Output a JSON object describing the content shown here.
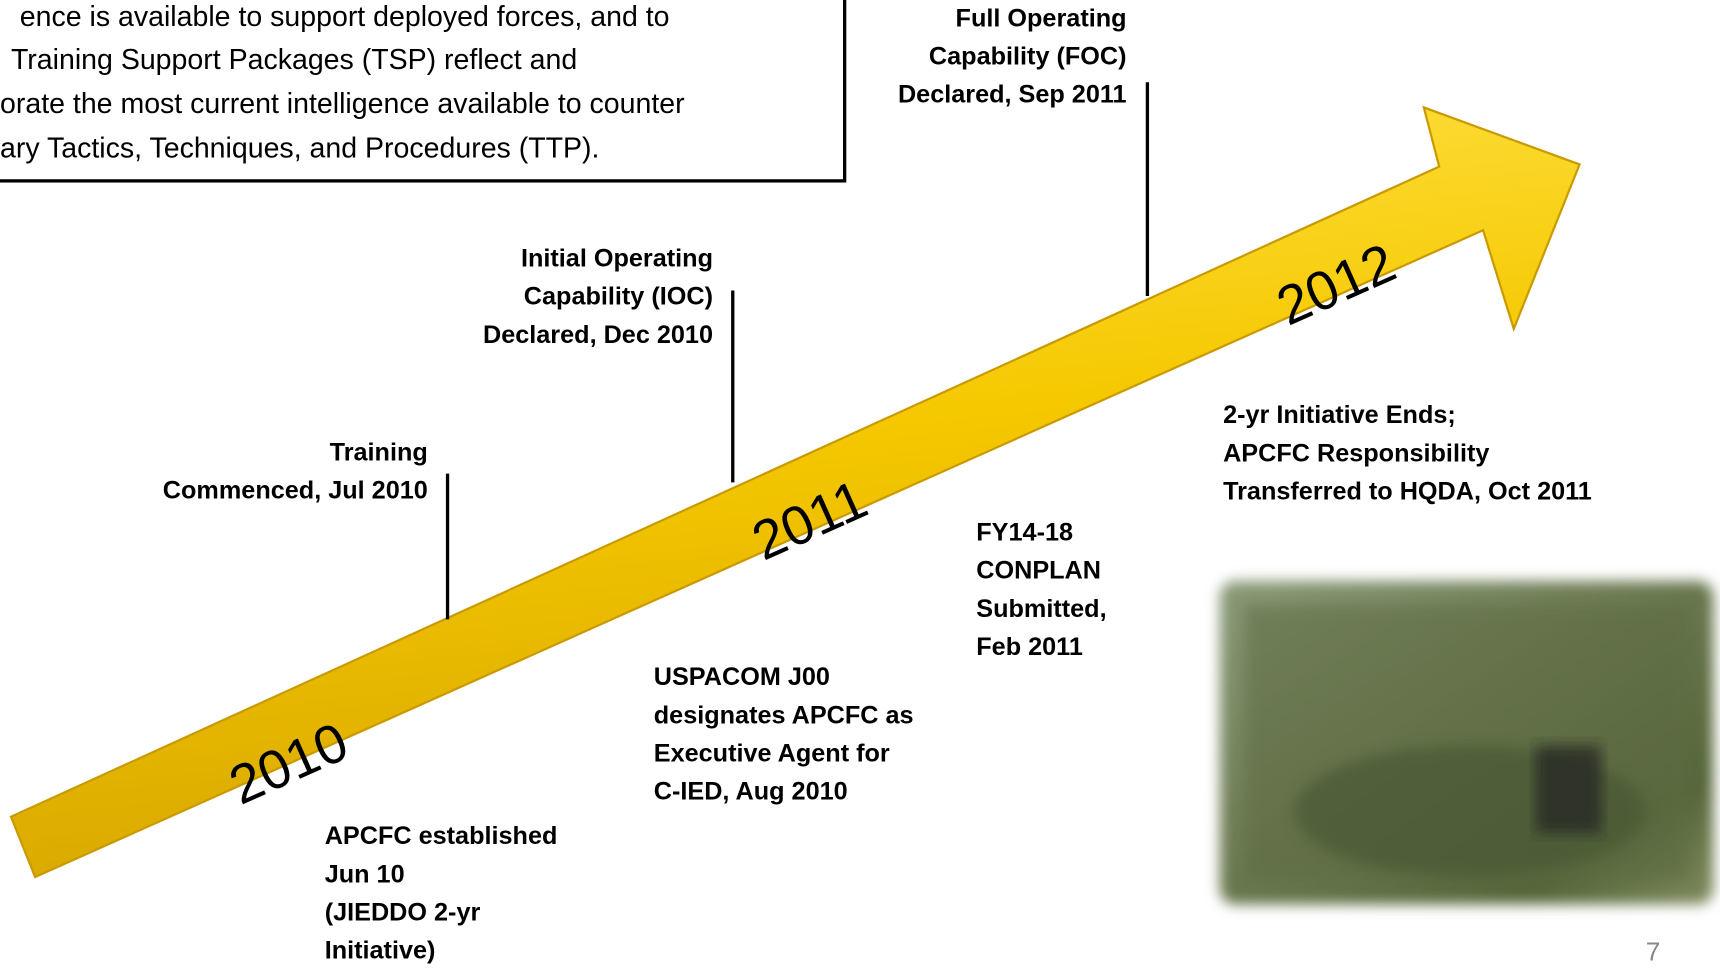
{
  "text_box": {
    "lines": [
      "ence is available to support deployed forces, and to",
      "Training Support Packages (TSP) reflect and",
      "orate the most current intelligence available to counter",
      "ary Tactics, Techniques, and Procedures (TTP)."
    ]
  },
  "years": [
    "2010",
    "2011",
    "2012"
  ],
  "events": [
    {
      "lines": [
        "Full Operating",
        "Capability (FOC)",
        "Declared, Sep 2011"
      ]
    },
    {
      "lines": [
        "Initial Operating",
        "Capability (IOC)",
        "Declared, Dec 2010"
      ]
    },
    {
      "lines": [
        "Training",
        "Commenced, Jul 2010"
      ]
    },
    {
      "lines": [
        "2-yr Initiative Ends;",
        "APCFC Responsibility",
        "Transferred to HQDA, Oct 2011"
      ]
    },
    {
      "lines": [
        "FY14-18",
        "CONPLAN",
        "Submitted,",
        "Feb 2011"
      ]
    },
    {
      "lines": [
        "USPACOM J00",
        "designates APCFC as",
        "Executive Agent for",
        "C-IED, Aug 2010"
      ]
    },
    {
      "lines": [
        "APCFC established",
        "Jun 10",
        "(JIEDDO 2-yr",
        "Initiative)"
      ]
    }
  ],
  "page_number": "7"
}
